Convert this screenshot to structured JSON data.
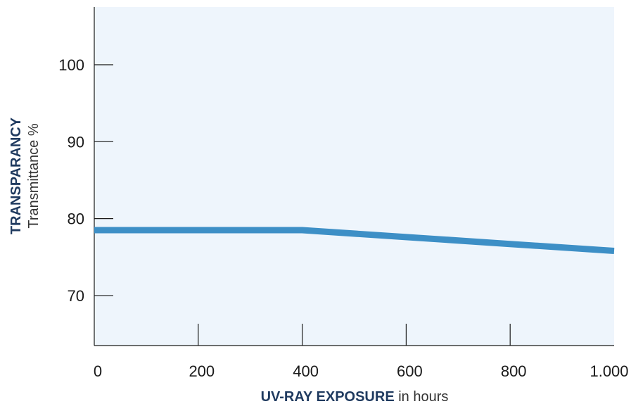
{
  "chart_data": {
    "type": "line",
    "title": "",
    "xlabel_bold": "UV-RAY EXPOSURE",
    "xlabel_rest": " in hours",
    "ylabel_bold": "TRANSPARANCY",
    "ylabel_rest": "Transmittance %",
    "xlim": [
      0,
      1000
    ],
    "ylim": [
      63.5,
      107.5
    ],
    "x_ticks": [
      0,
      200,
      400,
      600,
      800,
      1000
    ],
    "x_tick_labels": [
      "0",
      "200",
      "400",
      "600",
      "800",
      "1.000"
    ],
    "y_ticks": [
      70,
      80,
      90,
      100
    ],
    "y_tick_labels": [
      "70",
      "80",
      "90",
      "100"
    ],
    "grid": false,
    "series": [
      {
        "x": [
          0,
          400,
          600,
          800,
          1000
        ],
        "values": [
          78.5,
          78.5,
          77.6,
          76.7,
          75.8
        ]
      }
    ],
    "colors": {
      "plot_background": "#eef5fc",
      "line": "#3d8fc6",
      "axis": "#1a1a1a",
      "title_text": "#1f3a5f",
      "tick_text": "#1a1a1a"
    }
  }
}
